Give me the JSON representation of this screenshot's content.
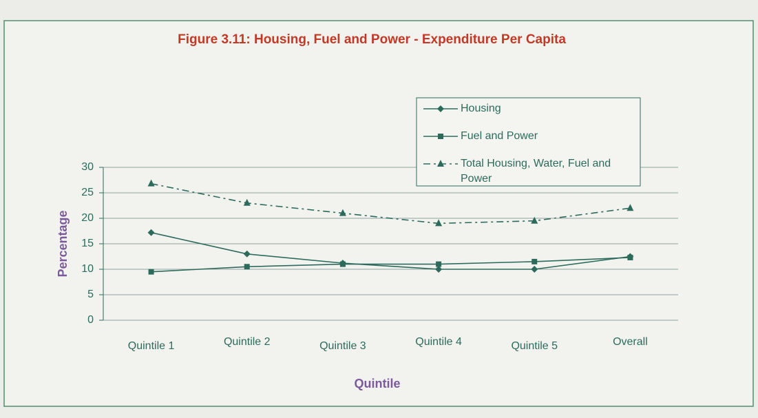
{
  "chart_data": {
    "type": "line",
    "title": "Figure 3.11: Housing, Fuel and Power - Expenditure Per Capita",
    "x_label": "Quintile",
    "y_label": "Percentage",
    "categories": [
      "Quintile 1",
      "Quintile 2",
      "Quintile 3",
      "Quintile 4",
      "Quintile 5",
      "Overall"
    ],
    "series": [
      {
        "name": "Housing",
        "color": "#2c6b5c",
        "marker": "diamond",
        "dash": "solid",
        "values": [
          17.2,
          13,
          11.2,
          10,
          10,
          12.5
        ]
      },
      {
        "name": "Fuel and Power",
        "color": "#2c6b5c",
        "marker": "square",
        "dash": "solid",
        "values": [
          9.5,
          10.5,
          11,
          11,
          11.5,
          12.3
        ]
      },
      {
        "name": "Total Housing, Water, Fuel and Power",
        "color": "#2c6b5c",
        "marker": "triangle",
        "dash": "dashdot",
        "values": [
          26.8,
          23,
          21,
          19,
          19.5,
          22
        ]
      }
    ],
    "ylim": [
      0,
      30
    ],
    "yticks": [
      0,
      5,
      10,
      15,
      20,
      25,
      30
    ],
    "grid": true,
    "legend": "upper right"
  }
}
